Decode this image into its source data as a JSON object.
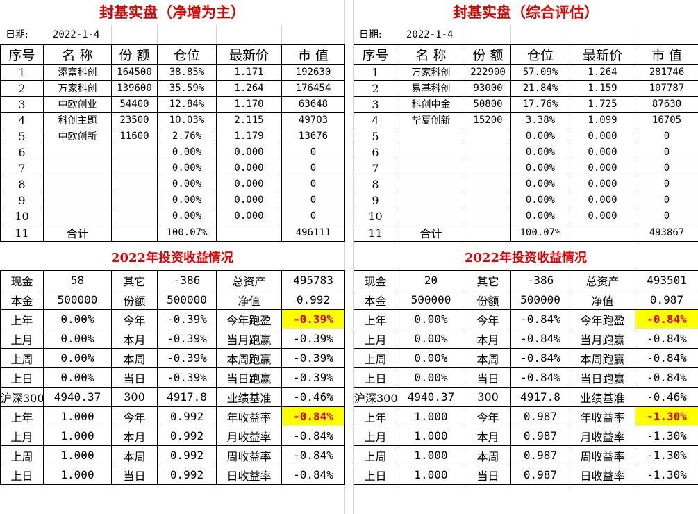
{
  "panels": [
    {
      "title": "封基实盘（净增为主）",
      "date_label": "日期:",
      "date": "2022-1-4",
      "headers": [
        "序号",
        "名 称",
        "份 额",
        "仓位",
        "最新价",
        "市 值"
      ],
      "rows": [
        {
          "no": "1",
          "name": "添富科创",
          "shares": "164500",
          "pos": "38.85%",
          "price": "1.171",
          "value": "192630"
        },
        {
          "no": "2",
          "name": "万家科创",
          "shares": "139600",
          "pos": "35.59%",
          "price": "1.264",
          "value": "176454"
        },
        {
          "no": "3",
          "name": "中欧创业",
          "shares": "54400",
          "pos": "12.84%",
          "price": "1.170",
          "value": "63648"
        },
        {
          "no": "4",
          "name": "科创主题",
          "shares": "23500",
          "pos": "10.03%",
          "price": "2.115",
          "value": "49703"
        },
        {
          "no": "5",
          "name": "中欧创新",
          "shares": "11600",
          "pos": "2.76%",
          "price": "1.179",
          "value": "13676"
        },
        {
          "no": "6",
          "name": "",
          "shares": "",
          "pos": "0.00%",
          "price": "0.000",
          "value": "0"
        },
        {
          "no": "7",
          "name": "",
          "shares": "",
          "pos": "0.00%",
          "price": "0.000",
          "value": "0"
        },
        {
          "no": "8",
          "name": "",
          "shares": "",
          "pos": "0.00%",
          "price": "0.000",
          "value": "0"
        },
        {
          "no": "9",
          "name": "",
          "shares": "",
          "pos": "0.00%",
          "price": "0.000",
          "value": "0"
        },
        {
          "no": "10",
          "name": "",
          "shares": "",
          "pos": "0.00%",
          "price": "0.000",
          "value": "0"
        }
      ],
      "total": {
        "no": "11",
        "name": "合计",
        "pos": "100.07%",
        "value": "496111"
      },
      "subtitle": "2022年投资收益情况",
      "stats": [
        [
          "现金",
          "58",
          "其它",
          "-386",
          "总资产",
          "495783"
        ],
        [
          "本金",
          "500000",
          "份额",
          "500000",
          "净值",
          "0.992"
        ],
        [
          "上年",
          "0.00%",
          "今年",
          "-0.39%",
          "今年跑盈",
          "-0.39%"
        ],
        [
          "上月",
          "0.00%",
          "本月",
          "-0.39%",
          "当月跑赢",
          "-0.39%"
        ],
        [
          "上周",
          "0.00%",
          "本周",
          "-0.39%",
          "本周跑赢",
          "-0.39%"
        ],
        [
          "上日",
          "0.00%",
          "当日",
          "-0.39%",
          "当日跑赢",
          "-0.39%"
        ],
        [
          "沪深300",
          "4940.37",
          "300",
          "4917.8",
          "业绩基准",
          "-0.46%"
        ],
        [
          "上年",
          "1.000",
          "今年",
          "0.992",
          "年收益率",
          "-0.84%"
        ],
        [
          "上月",
          "1.000",
          "本月",
          "0.992",
          "月收益率",
          "-0.84%"
        ],
        [
          "上周",
          "1.000",
          "本周",
          "0.992",
          "周收益率",
          "-0.84%"
        ],
        [
          "上日",
          "1.000",
          "当日",
          "0.992",
          "日收益率",
          "-0.84%"
        ]
      ]
    },
    {
      "title": "封基实盘（综合评估）",
      "date_label": "日期:",
      "date": "2022-1-4",
      "headers": [
        "序号",
        "名 称",
        "份 额",
        "仓位",
        "最新价",
        "市 值"
      ],
      "rows": [
        {
          "no": "1",
          "name": "万家科创",
          "shares": "222900",
          "pos": "57.09%",
          "price": "1.264",
          "value": "281746"
        },
        {
          "no": "2",
          "name": "易基科创",
          "shares": "93000",
          "pos": "21.84%",
          "price": "1.159",
          "value": "107787"
        },
        {
          "no": "3",
          "name": "科创中金",
          "shares": "50800",
          "pos": "17.76%",
          "price": "1.725",
          "value": "87630"
        },
        {
          "no": "4",
          "name": "华夏创新",
          "shares": "15200",
          "pos": "3.38%",
          "price": "1.099",
          "value": "16705"
        },
        {
          "no": "5",
          "name": "",
          "shares": "",
          "pos": "0.00%",
          "price": "0.000",
          "value": "0"
        },
        {
          "no": "6",
          "name": "",
          "shares": "",
          "pos": "0.00%",
          "price": "0.000",
          "value": "0"
        },
        {
          "no": "7",
          "name": "",
          "shares": "",
          "pos": "0.00%",
          "price": "0.000",
          "value": "0"
        },
        {
          "no": "8",
          "name": "",
          "shares": "",
          "pos": "0.00%",
          "price": "0.000",
          "value": "0"
        },
        {
          "no": "9",
          "name": "",
          "shares": "",
          "pos": "0.00%",
          "price": "0.000",
          "value": "0"
        },
        {
          "no": "10",
          "name": "",
          "shares": "",
          "pos": "0.00%",
          "price": "0.000",
          "value": "0"
        }
      ],
      "total": {
        "no": "11",
        "name": "合计",
        "pos": "100.07%",
        "value": "493867"
      },
      "subtitle": "2022年投资收益情况",
      "stats": [
        [
          "现金",
          "20",
          "其它",
          "-386",
          "总资产",
          "493501"
        ],
        [
          "本金",
          "500000",
          "份额",
          "500000",
          "净值",
          "0.987"
        ],
        [
          "上年",
          "0.00%",
          "今年",
          "-0.84%",
          "今年跑盈",
          "-0.84%"
        ],
        [
          "上月",
          "0.00%",
          "本月",
          "-0.84%",
          "当月跑赢",
          "-0.84%"
        ],
        [
          "上周",
          "0.00%",
          "本周",
          "-0.84%",
          "本周跑赢",
          "-0.84%"
        ],
        [
          "上日",
          "0.00%",
          "当日",
          "-0.84%",
          "当日跑赢",
          "-0.84%"
        ],
        [
          "沪深300",
          "4940.37",
          "300",
          "4917.8",
          "业绩基准",
          "-0.46%"
        ],
        [
          "上年",
          "1.000",
          "今年",
          "0.987",
          "年收益率",
          "-1.30%"
        ],
        [
          "上月",
          "1.000",
          "本月",
          "0.987",
          "月收益率",
          "-1.30%"
        ],
        [
          "上周",
          "1.000",
          "本周",
          "0.987",
          "周收益率",
          "-1.30%"
        ],
        [
          "上日",
          "1.000",
          "当日",
          "0.987",
          "日收益率",
          "-1.30%"
        ]
      ]
    }
  ],
  "colors": {
    "title": "#e00000",
    "highlight": "#ffff00",
    "highlight_text": "#e00000"
  },
  "highlighted_cells": [
    "stats.2.5",
    "stats.7.5"
  ]
}
